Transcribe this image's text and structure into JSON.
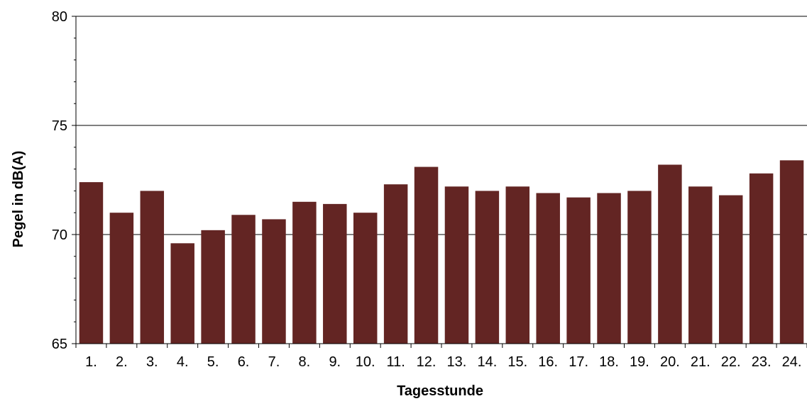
{
  "chart_data": {
    "type": "bar",
    "categories": [
      "1.",
      "2.",
      "3.",
      "4.",
      "5.",
      "6.",
      "7.",
      "8.",
      "9.",
      "10.",
      "11.",
      "12.",
      "13.",
      "14.",
      "15.",
      "16.",
      "17.",
      "18.",
      "19.",
      "20.",
      "21.",
      "22.",
      "23.",
      "24."
    ],
    "values": [
      72.4,
      71.0,
      72.0,
      69.6,
      70.2,
      70.9,
      70.7,
      71.5,
      71.4,
      71.0,
      72.3,
      73.1,
      72.2,
      72.0,
      72.2,
      71.9,
      71.7,
      71.9,
      72.0,
      73.2,
      72.2,
      71.8,
      72.8,
      73.4
    ],
    "xlabel": "Tagesstunde",
    "ylabel": "Pegel in dB(A)",
    "ylim": [
      65,
      80
    ],
    "yticks": [
      65,
      70,
      75,
      80
    ],
    "grid": true,
    "bar_color": "#632523"
  }
}
